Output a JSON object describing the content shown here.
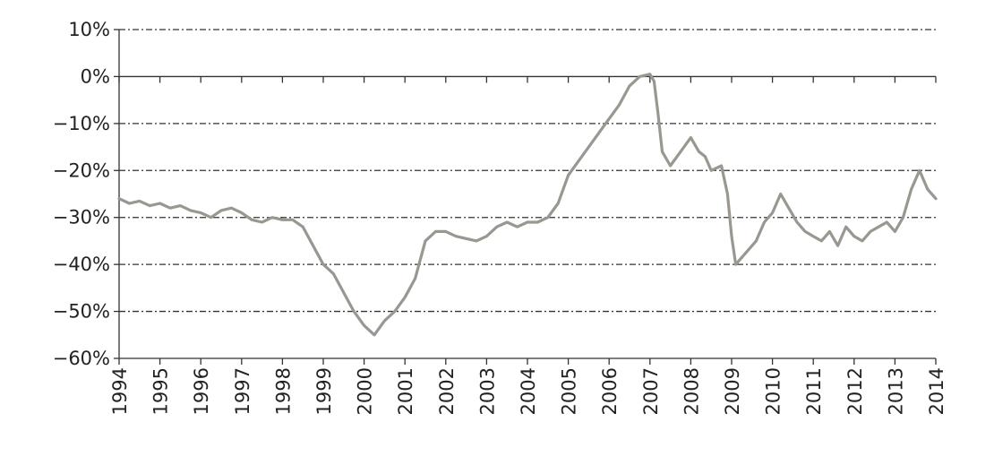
{
  "chart_data": {
    "type": "line",
    "title": "",
    "xlabel": "",
    "ylabel": "",
    "xlim": [
      1994,
      2014
    ],
    "ylim": [
      -60,
      10
    ],
    "grid": true,
    "line_color": "#9a9791",
    "x_ticks": [
      "1994",
      "1995",
      "1996",
      "1997",
      "1998",
      "1999",
      "2000",
      "2001",
      "2002",
      "2003",
      "2004",
      "2005",
      "2006",
      "2007",
      "2008",
      "2009",
      "2010",
      "2011",
      "2012",
      "2013",
      "2014"
    ],
    "y_ticks": [
      10,
      0,
      -10,
      -20,
      -30,
      -40,
      -50,
      -60
    ],
    "y_tick_labels": [
      "10%",
      "0%",
      "−10%",
      "−20%",
      "−30%",
      "−40%",
      "−50%",
      "−60%"
    ],
    "series": [
      {
        "x": [
          1994.0,
          1994.25,
          1994.5,
          1994.75,
          1995.0,
          1995.25,
          1995.5,
          1995.75,
          1996.0,
          1996.25,
          1996.5,
          1996.75,
          1997.0,
          1997.25,
          1997.5,
          1997.75,
          1998.0,
          1998.25,
          1998.5,
          1998.75,
          1999.0,
          1999.25,
          1999.5,
          1999.75,
          2000.0,
          2000.25,
          2000.5,
          2000.75,
          2001.0,
          2001.25,
          2001.5,
          2001.75,
          2002.0,
          2002.25,
          2002.5,
          2002.75,
          2003.0,
          2003.25,
          2003.5,
          2003.75,
          2004.0,
          2004.25,
          2004.5,
          2004.75,
          2005.0,
          2005.25,
          2005.5,
          2005.75,
          2006.0,
          2006.25,
          2006.5,
          2006.75,
          2007.0,
          2007.1,
          2007.2,
          2007.3,
          2007.5,
          2007.75,
          2008.0,
          2008.2,
          2008.35,
          2008.5,
          2008.75,
          2008.9,
          2009.0,
          2009.1,
          2009.3,
          2009.6,
          2009.8,
          2010.0,
          2010.2,
          2010.4,
          2010.6,
          2010.8,
          2011.0,
          2011.2,
          2011.4,
          2011.6,
          2011.8,
          2012.0,
          2012.2,
          2012.4,
          2012.6,
          2012.8,
          2013.0,
          2013.2,
          2013.4,
          2013.6,
          2013.8,
          2014.0
        ],
        "y": [
          -26,
          -27,
          -26.5,
          -27.5,
          -27,
          -28,
          -27.5,
          -28.5,
          -29,
          -30,
          -28.5,
          -28,
          -29,
          -30.5,
          -31,
          -30,
          -30.5,
          -30.5,
          -32,
          -36,
          -40,
          -42,
          -46,
          -50,
          -53,
          -55,
          -52,
          -50,
          -47,
          -43,
          -35,
          -33,
          -33,
          -34,
          -34.5,
          -35,
          -34,
          -32,
          -31,
          -32,
          -31,
          -31,
          -30,
          -27,
          -21,
          -18,
          -15,
          -12,
          -9,
          -6,
          -2,
          0,
          0.5,
          -1,
          -8,
          -16,
          -19,
          -16,
          -13,
          -16,
          -17,
          -20,
          -19,
          -25,
          -34,
          -40,
          -38,
          -35,
          -31,
          -29,
          -25,
          -28,
          -31,
          -33,
          -34,
          -35,
          -33,
          -36,
          -32,
          -34,
          -35,
          -33,
          -32,
          -31,
          -33,
          -30,
          -24,
          -20,
          -24,
          -26
        ]
      }
    ]
  }
}
